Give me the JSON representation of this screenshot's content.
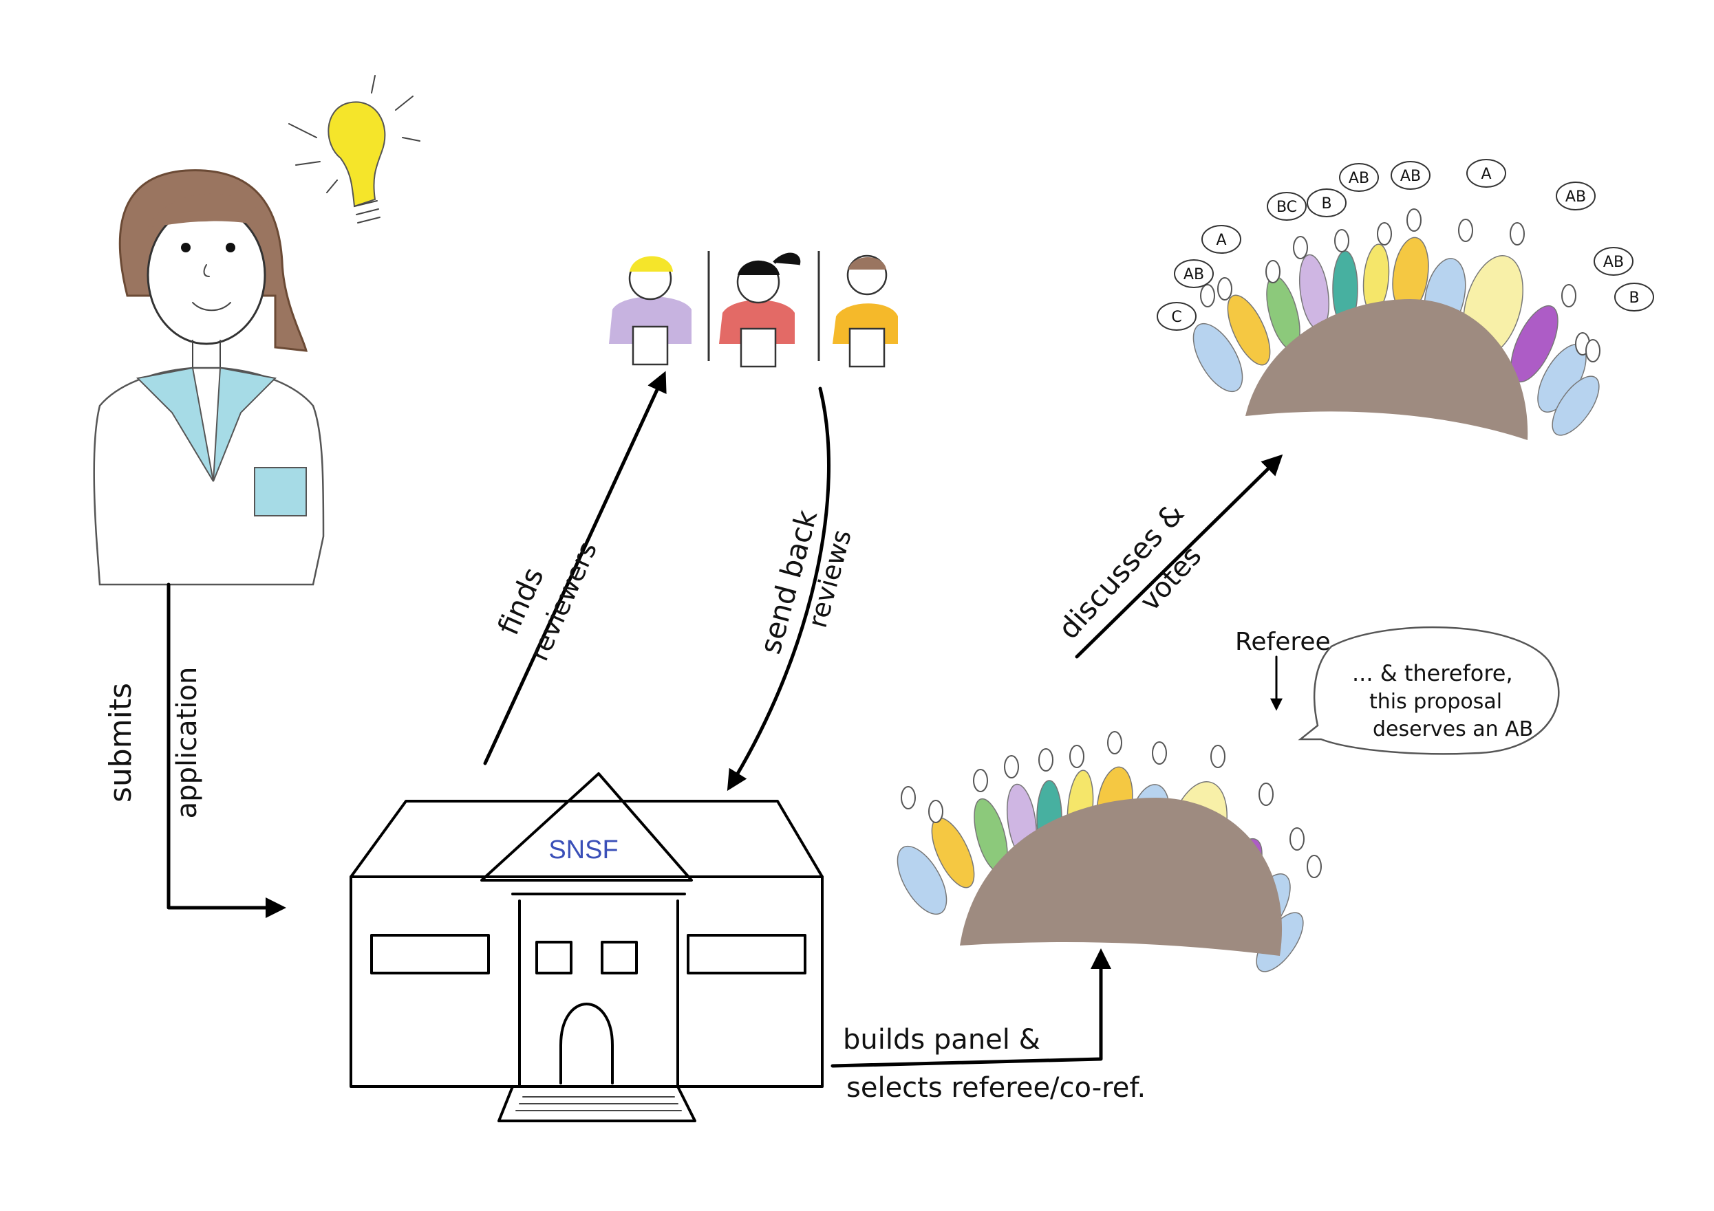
{
  "diagram": {
    "building_sign": "SNSF",
    "arrows": {
      "submit": {
        "line1": "submits",
        "line2": "application"
      },
      "find": {
        "line1": "finds",
        "line2": "reviewers"
      },
      "send": {
        "line1": "send back",
        "line2": "reviews"
      },
      "build": {
        "line1": "builds panel &",
        "line2": "selects referee/co-ref."
      },
      "discuss": {
        "line1": "discusses &",
        "line2": "votes"
      }
    },
    "referee_label": "Referee",
    "speech": {
      "line1": "... & therefore,",
      "line2": "this proposal",
      "line3": "deserves an AB"
    },
    "votes": [
      "C",
      "AB",
      "A",
      "BC",
      "B",
      "AB",
      "AB",
      "A",
      "AB",
      "AB",
      "B"
    ]
  },
  "colors": {
    "hill": "#9e8b80",
    "bulb": "#f5e52a",
    "hair": "#9a7560",
    "collar": "#a6dbe6",
    "reviewer1": "#c7b3e0",
    "reviewer2": "#e36a66",
    "reviewer3": "#f5b92a"
  }
}
